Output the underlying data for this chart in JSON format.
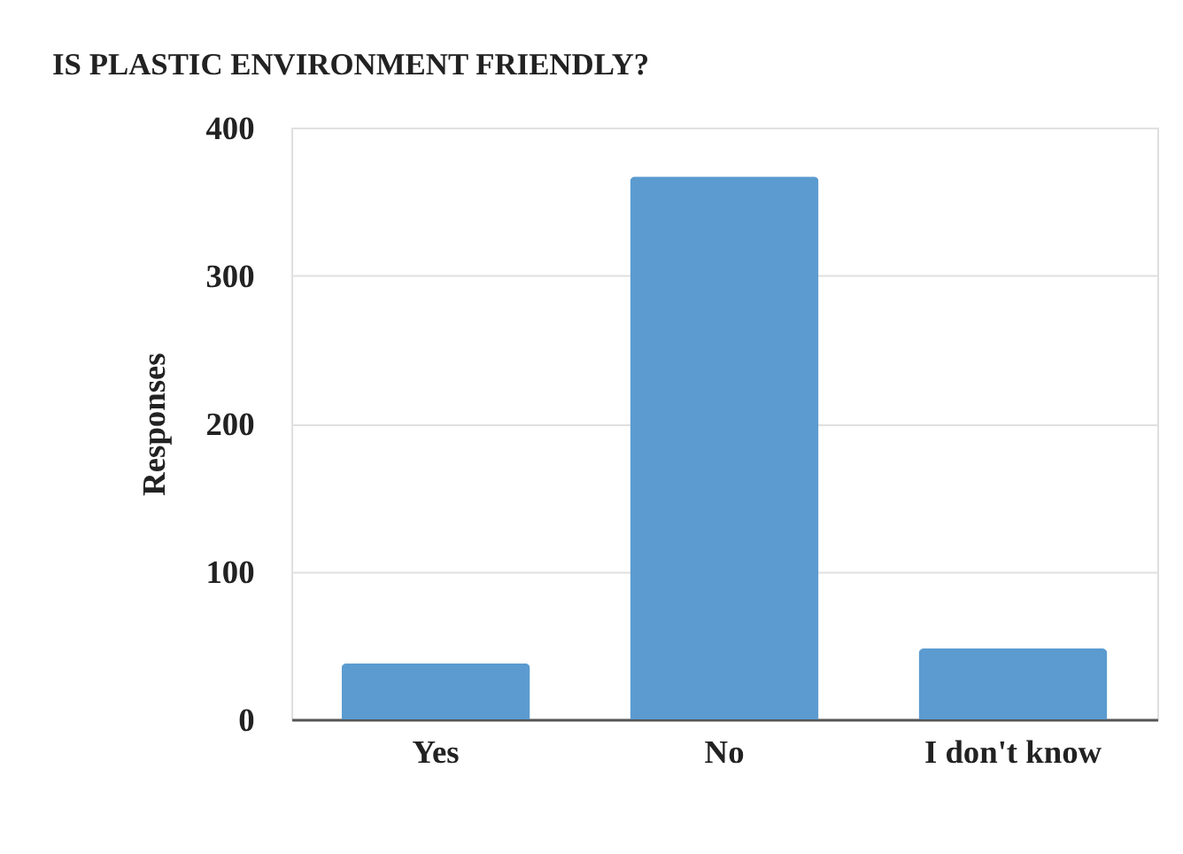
{
  "chart_data": {
    "type": "bar",
    "title": "IS PLASTIC ENVIRONMENT FRIENDLY?",
    "ylabel": "Responses",
    "categories": [
      "Yes",
      "No",
      "I don't know"
    ],
    "values": [
      38,
      367,
      48
    ],
    "color": "#5b9bd0",
    "ylim": [
      0,
      400
    ],
    "yticks": [
      0,
      100,
      200,
      300,
      400
    ],
    "grid": "y"
  }
}
